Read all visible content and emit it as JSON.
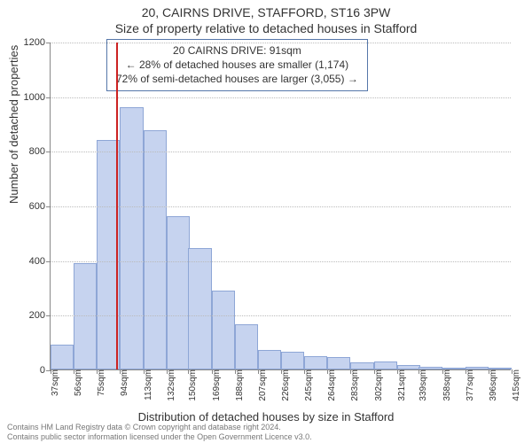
{
  "title": "20, CAIRNS DRIVE, STAFFORD, ST16 3PW",
  "subtitle": "Size of property relative to detached houses in Stafford",
  "callout": {
    "line1": "20 CAIRNS DRIVE: 91sqm",
    "line2": "← 28% of detached houses are smaller (1,174)",
    "line3": "72% of semi-detached houses are larger (3,055) →"
  },
  "chart": {
    "type": "histogram",
    "xlabel": "Distribution of detached houses by size in Stafford",
    "ylabel": "Number of detached properties",
    "ylim": [
      0,
      1200
    ],
    "ytick_step": 200,
    "xticks": [
      37,
      56,
      75,
      94,
      113,
      132,
      150,
      169,
      188,
      207,
      226,
      245,
      264,
      283,
      302,
      321,
      339,
      358,
      377,
      396,
      415
    ],
    "xtick_suffix": "sqm",
    "categories_start": [
      37,
      56,
      75,
      94,
      113,
      132,
      150,
      169,
      188,
      207,
      226,
      245,
      264,
      283,
      302,
      321,
      339,
      358,
      377,
      396
    ],
    "values": [
      90,
      390,
      840,
      960,
      875,
      560,
      445,
      290,
      165,
      70,
      65,
      50,
      45,
      25,
      30,
      15,
      10,
      8,
      10,
      5
    ],
    "bar_fill": "#c6d3ef",
    "bar_border": "#8ea6d6",
    "grid_color": "#bbbbbb",
    "axis_color": "#888888",
    "background_color": "#ffffff",
    "reference_line": {
      "x_value": 91,
      "color": "#cc2222",
      "width": 2
    },
    "label_fontsize": 13,
    "tick_fontsize": 11
  },
  "footer": {
    "line1": "Contains HM Land Registry data © Crown copyright and database right 2024.",
    "line2": "Contains public sector information licensed under the Open Government Licence v3.0."
  }
}
